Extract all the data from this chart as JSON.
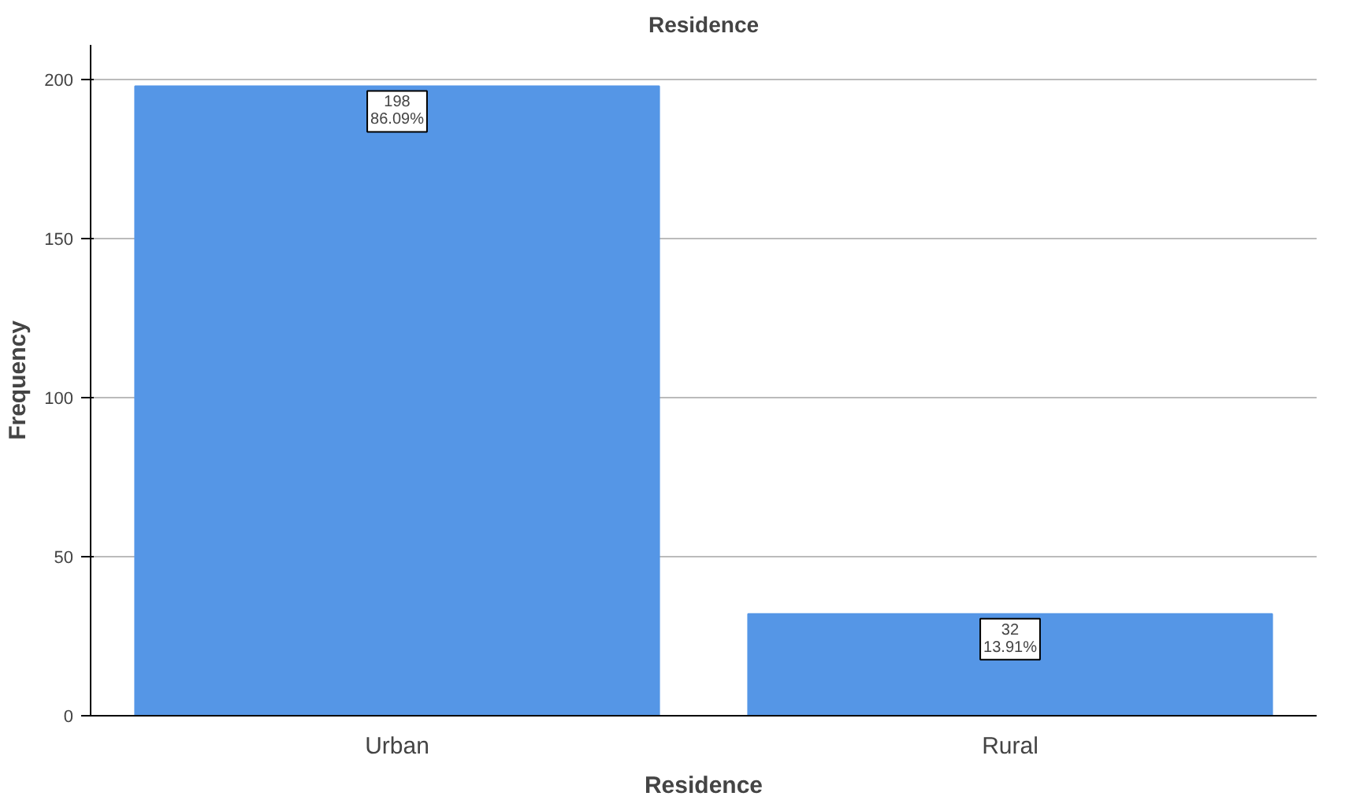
{
  "chart_data": {
    "type": "bar",
    "title": "Residence",
    "xlabel": "Residence",
    "ylabel": "Frequency",
    "categories": [
      "Urban",
      "Rural"
    ],
    "values": [
      198,
      32
    ],
    "color": "#5596e6",
    "value_labels": [
      "198\n86.09%",
      "32\n13.91%"
    ],
    "ylim": [
      0,
      211
    ],
    "yticks": [
      0,
      50,
      100,
      150,
      200
    ],
    "grid": "y"
  }
}
